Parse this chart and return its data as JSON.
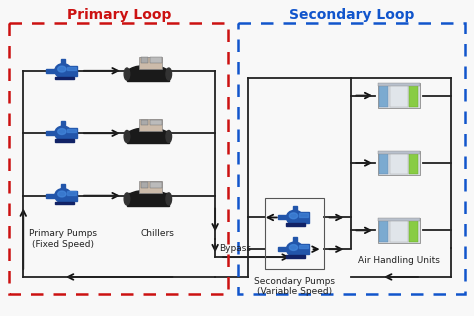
{
  "primary_loop_title": "Primary Loop",
  "secondary_loop_title": "Secondary Loop",
  "primary_loop_color": "#cc1111",
  "secondary_loop_color": "#1155cc",
  "background_color": "#f8f8f8",
  "arrow_color": "#111111",
  "label_primary_pumps": "Primary Pumps\n(Fixed Speed)",
  "label_chillers": "Chillers",
  "label_secondary_pumps": "Secondary Pumps\n(Variable Speed)",
  "label_ahu": "Air Handling Units",
  "label_bypass": "Bypass",
  "font_size_title": 10,
  "font_size_label": 6.5,
  "pump_body_color": "#2255aa",
  "pump_highlight": "#4488dd",
  "pump_dark": "#112266",
  "chiller_body_color": "#1a1a1a",
  "chiller_top_color": "#ccbbaa",
  "chiller_comp_color": "#aaaaaa",
  "ahu_body_color": "#d8dde4",
  "ahu_panel_color": "#7baad0",
  "ahu_green_color": "#88cc44",
  "line_color": "#222222",
  "line_lw": 1.3
}
